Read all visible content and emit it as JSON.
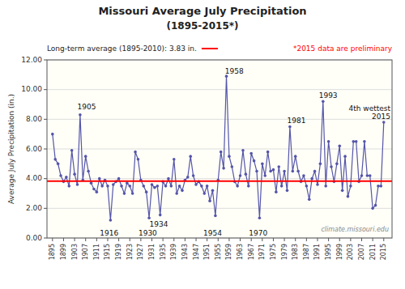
{
  "chart_data": {
    "type": "line",
    "title": "Missouri Average July Precipitation",
    "subtitle": "(1895-2015*)",
    "y_label": "Average July Precipitation (in.)",
    "note": "*2015 data are preliminary",
    "watermark": "climate.missouri.edu",
    "color": "#5555aa",
    "marker": "circle",
    "grid": true,
    "reference_line": {
      "value": 3.83,
      "label": "Long-term average (1895-2010): 3.83 in.",
      "color": "#ff0000"
    },
    "xlim": [
      1893,
      2018
    ],
    "xticks": [
      1895,
      1899,
      1903,
      1907,
      1911,
      1915,
      1919,
      1923,
      1927,
      1931,
      1935,
      1939,
      1943,
      1947,
      1951,
      1955,
      1959,
      1963,
      1967,
      1971,
      1975,
      1979,
      1983,
      1987,
      1991,
      1995,
      1999,
      2003,
      2007,
      2011,
      2015
    ],
    "ylim": [
      0.0,
      12.0
    ],
    "yticks": [
      {
        "value": 0,
        "label": "0.00"
      },
      {
        "value": 2,
        "label": "2.00"
      },
      {
        "value": 4,
        "label": "4.00"
      },
      {
        "value": 6,
        "label": "6.00"
      },
      {
        "value": 8,
        "label": "8.00"
      },
      {
        "value": 10,
        "label": "10.00"
      },
      {
        "value": 12,
        "label": "12.00"
      }
    ],
    "x": [
      1895,
      1896,
      1897,
      1898,
      1899,
      1900,
      1901,
      1902,
      1903,
      1904,
      1905,
      1906,
      1907,
      1908,
      1909,
      1910,
      1911,
      1912,
      1913,
      1914,
      1915,
      1916,
      1917,
      1918,
      1919,
      1920,
      1921,
      1922,
      1923,
      1924,
      1925,
      1926,
      1927,
      1928,
      1929,
      1930,
      1931,
      1932,
      1933,
      1934,
      1935,
      1936,
      1937,
      1938,
      1939,
      1940,
      1941,
      1942,
      1943,
      1944,
      1945,
      1946,
      1947,
      1948,
      1949,
      1950,
      1951,
      1952,
      1953,
      1954,
      1955,
      1956,
      1957,
      1958,
      1959,
      1960,
      1961,
      1962,
      1963,
      1964,
      1965,
      1966,
      1967,
      1968,
      1969,
      1970,
      1971,
      1972,
      1973,
      1974,
      1975,
      1976,
      1977,
      1978,
      1979,
      1980,
      1981,
      1982,
      1983,
      1984,
      1985,
      1986,
      1987,
      1988,
      1989,
      1990,
      1991,
      1992,
      1993,
      1994,
      1995,
      1996,
      1997,
      1998,
      1999,
      2000,
      2001,
      2002,
      2003,
      2004,
      2005,
      2006,
      2007,
      2008,
      2009,
      2010,
      2011,
      2012,
      2013,
      2014,
      2015
    ],
    "values": [
      7.0,
      5.3,
      5.0,
      4.2,
      3.8,
      4.1,
      3.5,
      5.9,
      4.3,
      3.6,
      8.3,
      3.9,
      5.5,
      4.5,
      3.7,
      3.3,
      3.1,
      4.0,
      3.5,
      3.9,
      3.5,
      1.2,
      3.6,
      3.8,
      4.0,
      3.5,
      3.0,
      3.7,
      3.5,
      3.0,
      5.8,
      5.3,
      3.9,
      3.5,
      3.1,
      1.35,
      3.6,
      3.4,
      3.5,
      1.55,
      3.8,
      3.5,
      4.0,
      3.5,
      5.3,
      3.0,
      3.5,
      3.2,
      3.9,
      4.1,
      5.5,
      4.2,
      3.6,
      3.8,
      3.5,
      3.0,
      3.5,
      2.5,
      3.2,
      1.5,
      3.9,
      5.8,
      4.7,
      10.9,
      5.5,
      4.8,
      3.8,
      3.5,
      4.2,
      5.9,
      4.3,
      3.5,
      5.7,
      5.2,
      4.5,
      1.35,
      5.0,
      4.2,
      5.8,
      4.5,
      4.6,
      3.1,
      4.8,
      3.5,
      4.5,
      3.2,
      7.5,
      4.5,
      5.5,
      4.5,
      3.8,
      4.2,
      3.5,
      2.6,
      4.0,
      4.5,
      3.6,
      5.0,
      9.2,
      3.5,
      6.5,
      4.8,
      3.8,
      5.0,
      6.2,
      3.2,
      5.5,
      2.8,
      3.5,
      6.5,
      6.5,
      3.8,
      4.2,
      6.5,
      4.2,
      4.2,
      2.0,
      2.2,
      3.5,
      3.5,
      7.8
    ],
    "annotations": [
      {
        "text": "1905",
        "x": 1904,
        "y": 8.65
      },
      {
        "text": "1916",
        "x": 1915.5,
        "y": 0.15
      },
      {
        "text": "1930",
        "x": 1929.5,
        "y": 0.15
      },
      {
        "text": "1934",
        "x": 1933.5,
        "y": 0.15
      },
      {
        "text": "1954",
        "x": 1953,
        "y": 0.15
      },
      {
        "text": "1958",
        "x": 1957.5,
        "y": 11.1
      },
      {
        "text": "1970",
        "x": 1969.5,
        "y": 0.15
      },
      {
        "text": "1981",
        "x": 1980,
        "y": 7.75
      },
      {
        "text": "1993",
        "x": 1991.5,
        "y": 9.45
      },
      {
        "text": "4th wettest",
        "x": 2013.5,
        "y": 8.55
      },
      {
        "text": "2015",
        "x": 2013.5,
        "y": 8.0
      }
    ]
  }
}
